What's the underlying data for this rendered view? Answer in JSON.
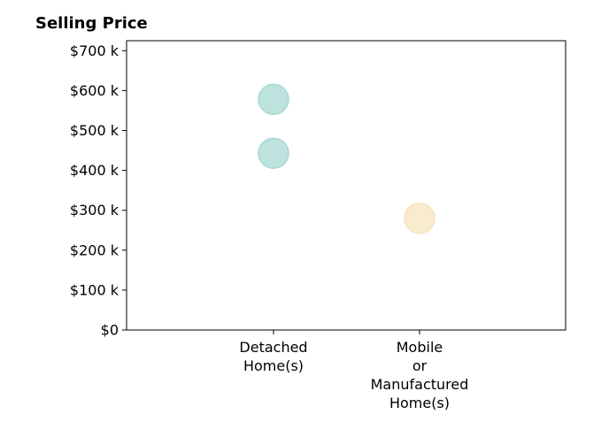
{
  "chart_data": {
    "type": "scatter",
    "title": "Selling Price",
    "xlabel": "",
    "ylabel": "",
    "categories": [
      [
        "Detached",
        "Home(s)"
      ],
      [
        "Mobile",
        "or",
        "Manufactured",
        "Home(s)"
      ]
    ],
    "ylim": [
      0,
      725000
    ],
    "yticks": [
      0,
      100000,
      200000,
      300000,
      400000,
      500000,
      600000,
      700000
    ],
    "ytick_labels": [
      "$0",
      "$100 k",
      "$200 k",
      "$300 k",
      "$400 k",
      "$500 k",
      "$600 k",
      "$700 k"
    ],
    "grid": false,
    "legend": "none",
    "points": [
      {
        "category": 0,
        "y": 578000,
        "color": "#a8d8d3"
      },
      {
        "category": 0,
        "y": 443000,
        "color": "#a8d8d3"
      },
      {
        "category": 1,
        "y": 280000,
        "color": "#f5e4bd"
      }
    ]
  }
}
